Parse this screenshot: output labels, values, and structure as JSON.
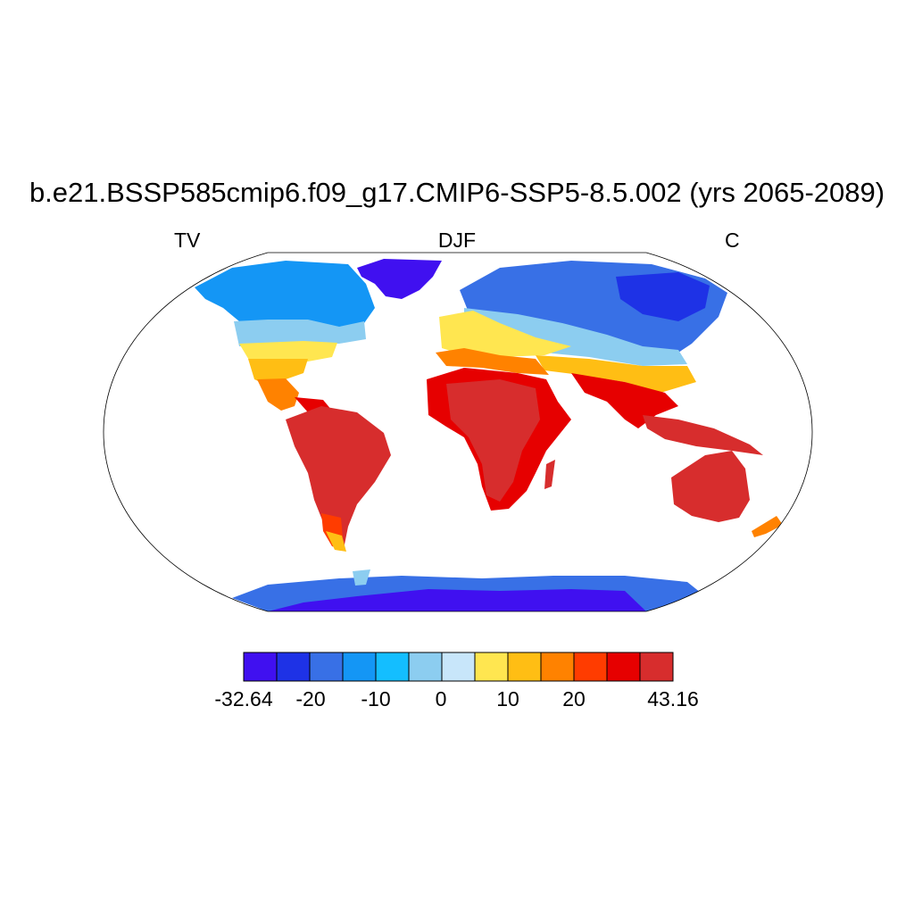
{
  "title": "b.e21.BSSP585cmip6.f09_g17.CMIP6-SSP5-8.5.002 (yrs 2065-2089)",
  "subtitle_left": "TV",
  "subtitle_center": "DJF",
  "subtitle_right": "C",
  "colorbar": {
    "colors": [
      "#4010f0",
      "#1e32e6",
      "#3870e6",
      "#1496f5",
      "#14beff",
      "#8ccdf0",
      "#c8e6fa",
      "#ffe650",
      "#ffbe14",
      "#ff8200",
      "#ff3c00",
      "#e60000",
      "#d72d2d"
    ],
    "labels": [
      "-32.64",
      "-20",
      "-10",
      "0",
      "10",
      "20",
      "43.16"
    ],
    "min": -32.64,
    "max": 43.16
  },
  "colors": {
    "ocean": "#ffffff",
    "outline": "#000000"
  }
}
